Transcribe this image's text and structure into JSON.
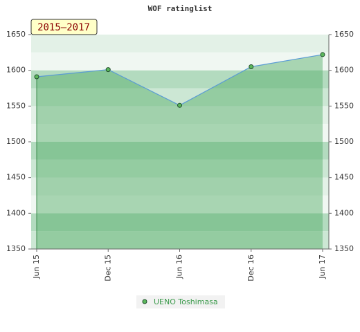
{
  "chart_data": {
    "type": "line",
    "title": "WOF ratinglist",
    "period_label": "2015–2017",
    "categories": [
      "Jun 15",
      "Dec 15",
      "Jun 16",
      "Dec 16",
      "Jun 17"
    ],
    "series": [
      {
        "name": "UENO Toshimasa",
        "color": "#5a9bd5",
        "values": [
          1591,
          1601,
          1551,
          1605,
          1622
        ]
      }
    ],
    "ylim": [
      1350,
      1650
    ],
    "yticks": [
      1350,
      1400,
      1450,
      1500,
      1550,
      1600,
      1650
    ],
    "y2lim": [
      1350,
      1650
    ],
    "y2ticks": [
      1350,
      1400,
      1450,
      1500,
      1550,
      1600,
      1650
    ]
  }
}
